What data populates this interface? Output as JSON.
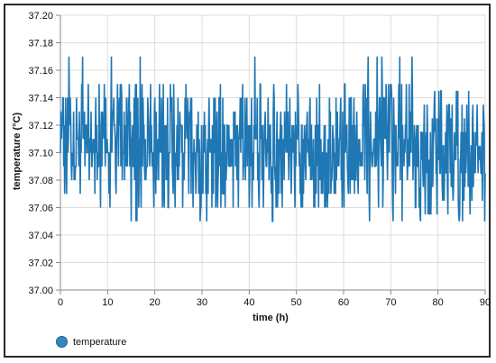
{
  "chart_data": {
    "type": "line",
    "title": "",
    "xlabel": "time (h)",
    "ylabel": "temperature (°C)",
    "xlim": [
      0,
      90
    ],
    "ylim": [
      37.0,
      37.2
    ],
    "x_ticks": [
      "0",
      "10",
      "20",
      "30",
      "40",
      "50",
      "60",
      "70",
      "80",
      "90"
    ],
    "y_ticks": [
      "37.00",
      "37.02",
      "37.04",
      "37.06",
      "37.08",
      "37.10",
      "37.12",
      "37.14",
      "37.16",
      "37.18",
      "37.20"
    ],
    "grid": true,
    "legend_position": "bottom-left",
    "series": [
      {
        "name": "temperature",
        "color": "#1f77b4",
        "x_step_h": 0.1,
        "x_range": [
          0,
          90
        ],
        "y_min": 37.05,
        "y_max": 37.17,
        "y_typical_range": [
          37.08,
          37.13
        ],
        "y_center": 37.1
      }
    ]
  },
  "legend": {
    "label": "temperature",
    "color": "#3288bd"
  }
}
